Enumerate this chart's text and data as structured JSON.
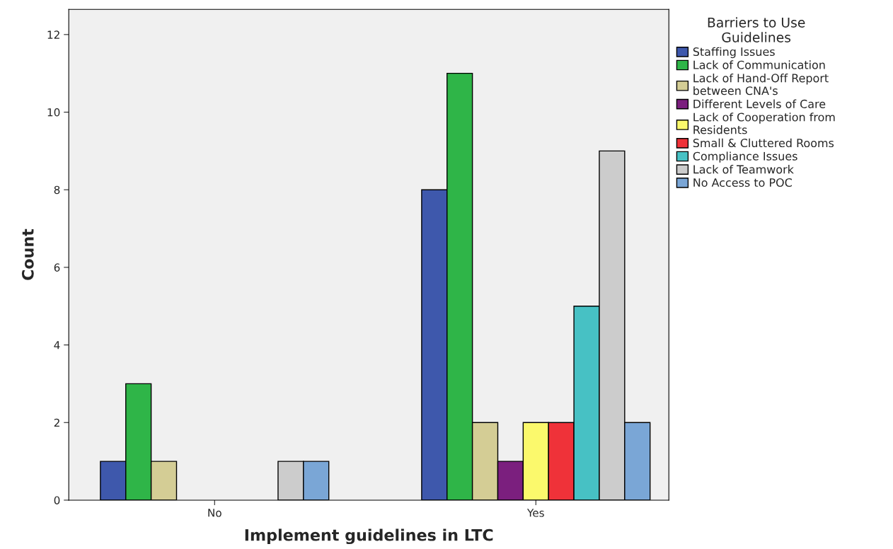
{
  "chart_data": {
    "type": "bar",
    "xlabel": "Implement guidelines in LTC",
    "ylabel": "Count",
    "legend_title": "Barriers to Use\nGuidelines",
    "categories": [
      "No",
      "Yes"
    ],
    "series": [
      {
        "name": "Staffing Issues",
        "color": "#3e58ac",
        "values": [
          1,
          8
        ]
      },
      {
        "name": "Lack of Communication",
        "color": "#2fb548",
        "values": [
          3,
          11
        ]
      },
      {
        "name": "Lack of Hand-Off Report\nbetween CNA's",
        "color": "#d4cd95",
        "values": [
          1,
          2
        ]
      },
      {
        "name": "Different Levels of Care",
        "color": "#7b1f7e",
        "values": [
          null,
          1
        ]
      },
      {
        "name": "Lack of Cooperation from\nResidents",
        "color": "#fbf96c",
        "values": [
          null,
          2
        ]
      },
      {
        "name": "Small & Cluttered Rooms",
        "color": "#ef3239",
        "values": [
          null,
          2
        ]
      },
      {
        "name": "Compliance Issues",
        "color": "#47c1c4",
        "values": [
          null,
          5
        ]
      },
      {
        "name": "Lack of Teamwork",
        "color": "#cccccc",
        "values": [
          1,
          9
        ]
      },
      {
        "name": "No Access to POC",
        "color": "#7aa6d6",
        "values": [
          1,
          2
        ]
      }
    ],
    "ylim": [
      0,
      12.65
    ],
    "yticks": [
      0,
      2,
      4,
      6,
      8,
      10,
      12
    ],
    "grid": false,
    "legend": "top right"
  }
}
